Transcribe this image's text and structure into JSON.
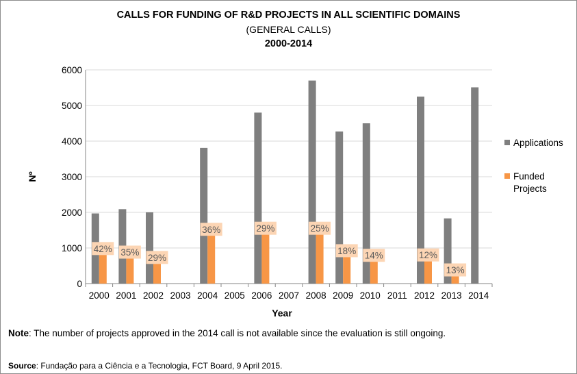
{
  "title": "CALLS FOR FUNDING OF R&D PROJECTS IN ALL SCIENTIFIC DOMAINS",
  "subtitle": "(GENERAL CALLS)",
  "period": "2000-2014",
  "note": {
    "label": "Note",
    "text": ": The number of projects approved in the 2014 call is not available since the evaluation is still ongoing."
  },
  "source": {
    "label": "Source",
    "text": ": Fundação para a Ciência e a Tecnologia, FCT Board, 9 April 2015."
  },
  "colors": {
    "applications": "#7f7f7f",
    "funded": "#f79646",
    "label_bg": "#fcd5b4",
    "grid": "#d9d9d9",
    "axis": "#868686"
  },
  "chart_data": {
    "type": "bar",
    "xlabel": "Year",
    "ylabel": "Nº",
    "ylim": [
      0,
      6000
    ],
    "yticks": [
      0,
      1000,
      2000,
      3000,
      4000,
      5000,
      6000
    ],
    "legend_position": "right",
    "categories": [
      "2000",
      "2001",
      "2002",
      "2003",
      "2004",
      "2005",
      "2006",
      "2007",
      "2008",
      "2009",
      "2010",
      "2011",
      "2012",
      "2013",
      "2014"
    ],
    "series": [
      {
        "name": "Applications",
        "color": "#7f7f7f",
        "values": [
          1970,
          2090,
          2000,
          null,
          3810,
          null,
          4800,
          null,
          5700,
          4270,
          4500,
          null,
          5250,
          1830,
          5510
        ]
      },
      {
        "name": "Funded Projects",
        "color": "#f79646",
        "values": [
          830,
          730,
          580,
          null,
          1370,
          null,
          1400,
          null,
          1400,
          770,
          640,
          null,
          650,
          230,
          null
        ]
      }
    ],
    "data_labels": [
      "42%",
      "35%",
      "29%",
      null,
      "36%",
      null,
      "29%",
      null,
      "25%",
      "18%",
      "14%",
      null,
      "12%",
      "13%",
      null
    ]
  }
}
